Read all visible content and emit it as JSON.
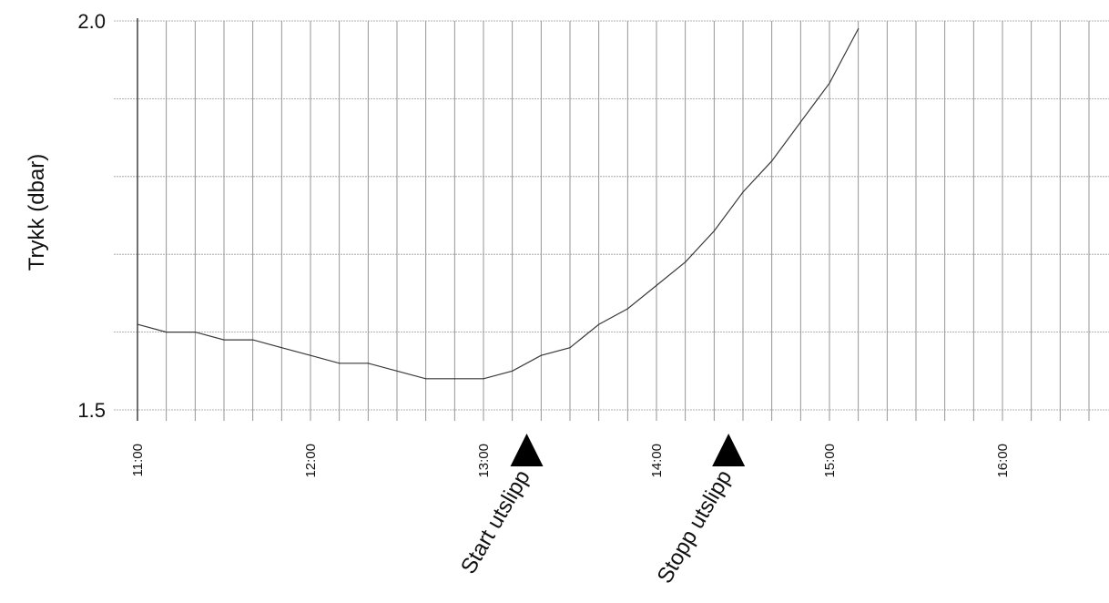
{
  "chart_data": {
    "type": "line",
    "title": "",
    "xlabel": "",
    "ylabel": "Trykk (dbar)",
    "y_ticks": [
      "2.0",
      "1.5"
    ],
    "x_ticks": [
      "11:00",
      "12:00",
      "13:00",
      "14:00",
      "15:00",
      "16:00"
    ],
    "xlim": [
      "11:00",
      "16:35"
    ],
    "ylim": [
      1.5,
      2.0
    ],
    "grid": true,
    "series": [
      {
        "x": [
          "11:00",
          "11:10",
          "11:20",
          "11:30",
          "11:40",
          "11:50",
          "12:00",
          "12:10",
          "12:20",
          "12:30",
          "12:40",
          "12:50",
          "13:00",
          "13:10",
          "13:20",
          "13:30",
          "13:40",
          "13:50",
          "14:00",
          "14:10",
          "14:20",
          "14:30",
          "14:40",
          "14:50",
          "15:00",
          "15:10"
        ],
        "y": [
          1.61,
          1.6,
          1.6,
          1.59,
          1.59,
          1.58,
          1.57,
          1.56,
          1.56,
          1.55,
          1.54,
          1.54,
          1.54,
          1.55,
          1.57,
          1.58,
          1.61,
          1.63,
          1.66,
          1.69,
          1.73,
          1.78,
          1.82,
          1.87,
          1.92,
          1.99
        ]
      }
    ],
    "annotations": [
      {
        "text": "Start utslipp",
        "x": "13:15"
      },
      {
        "text": "Stopp utslipp",
        "x": "14:25"
      }
    ]
  }
}
